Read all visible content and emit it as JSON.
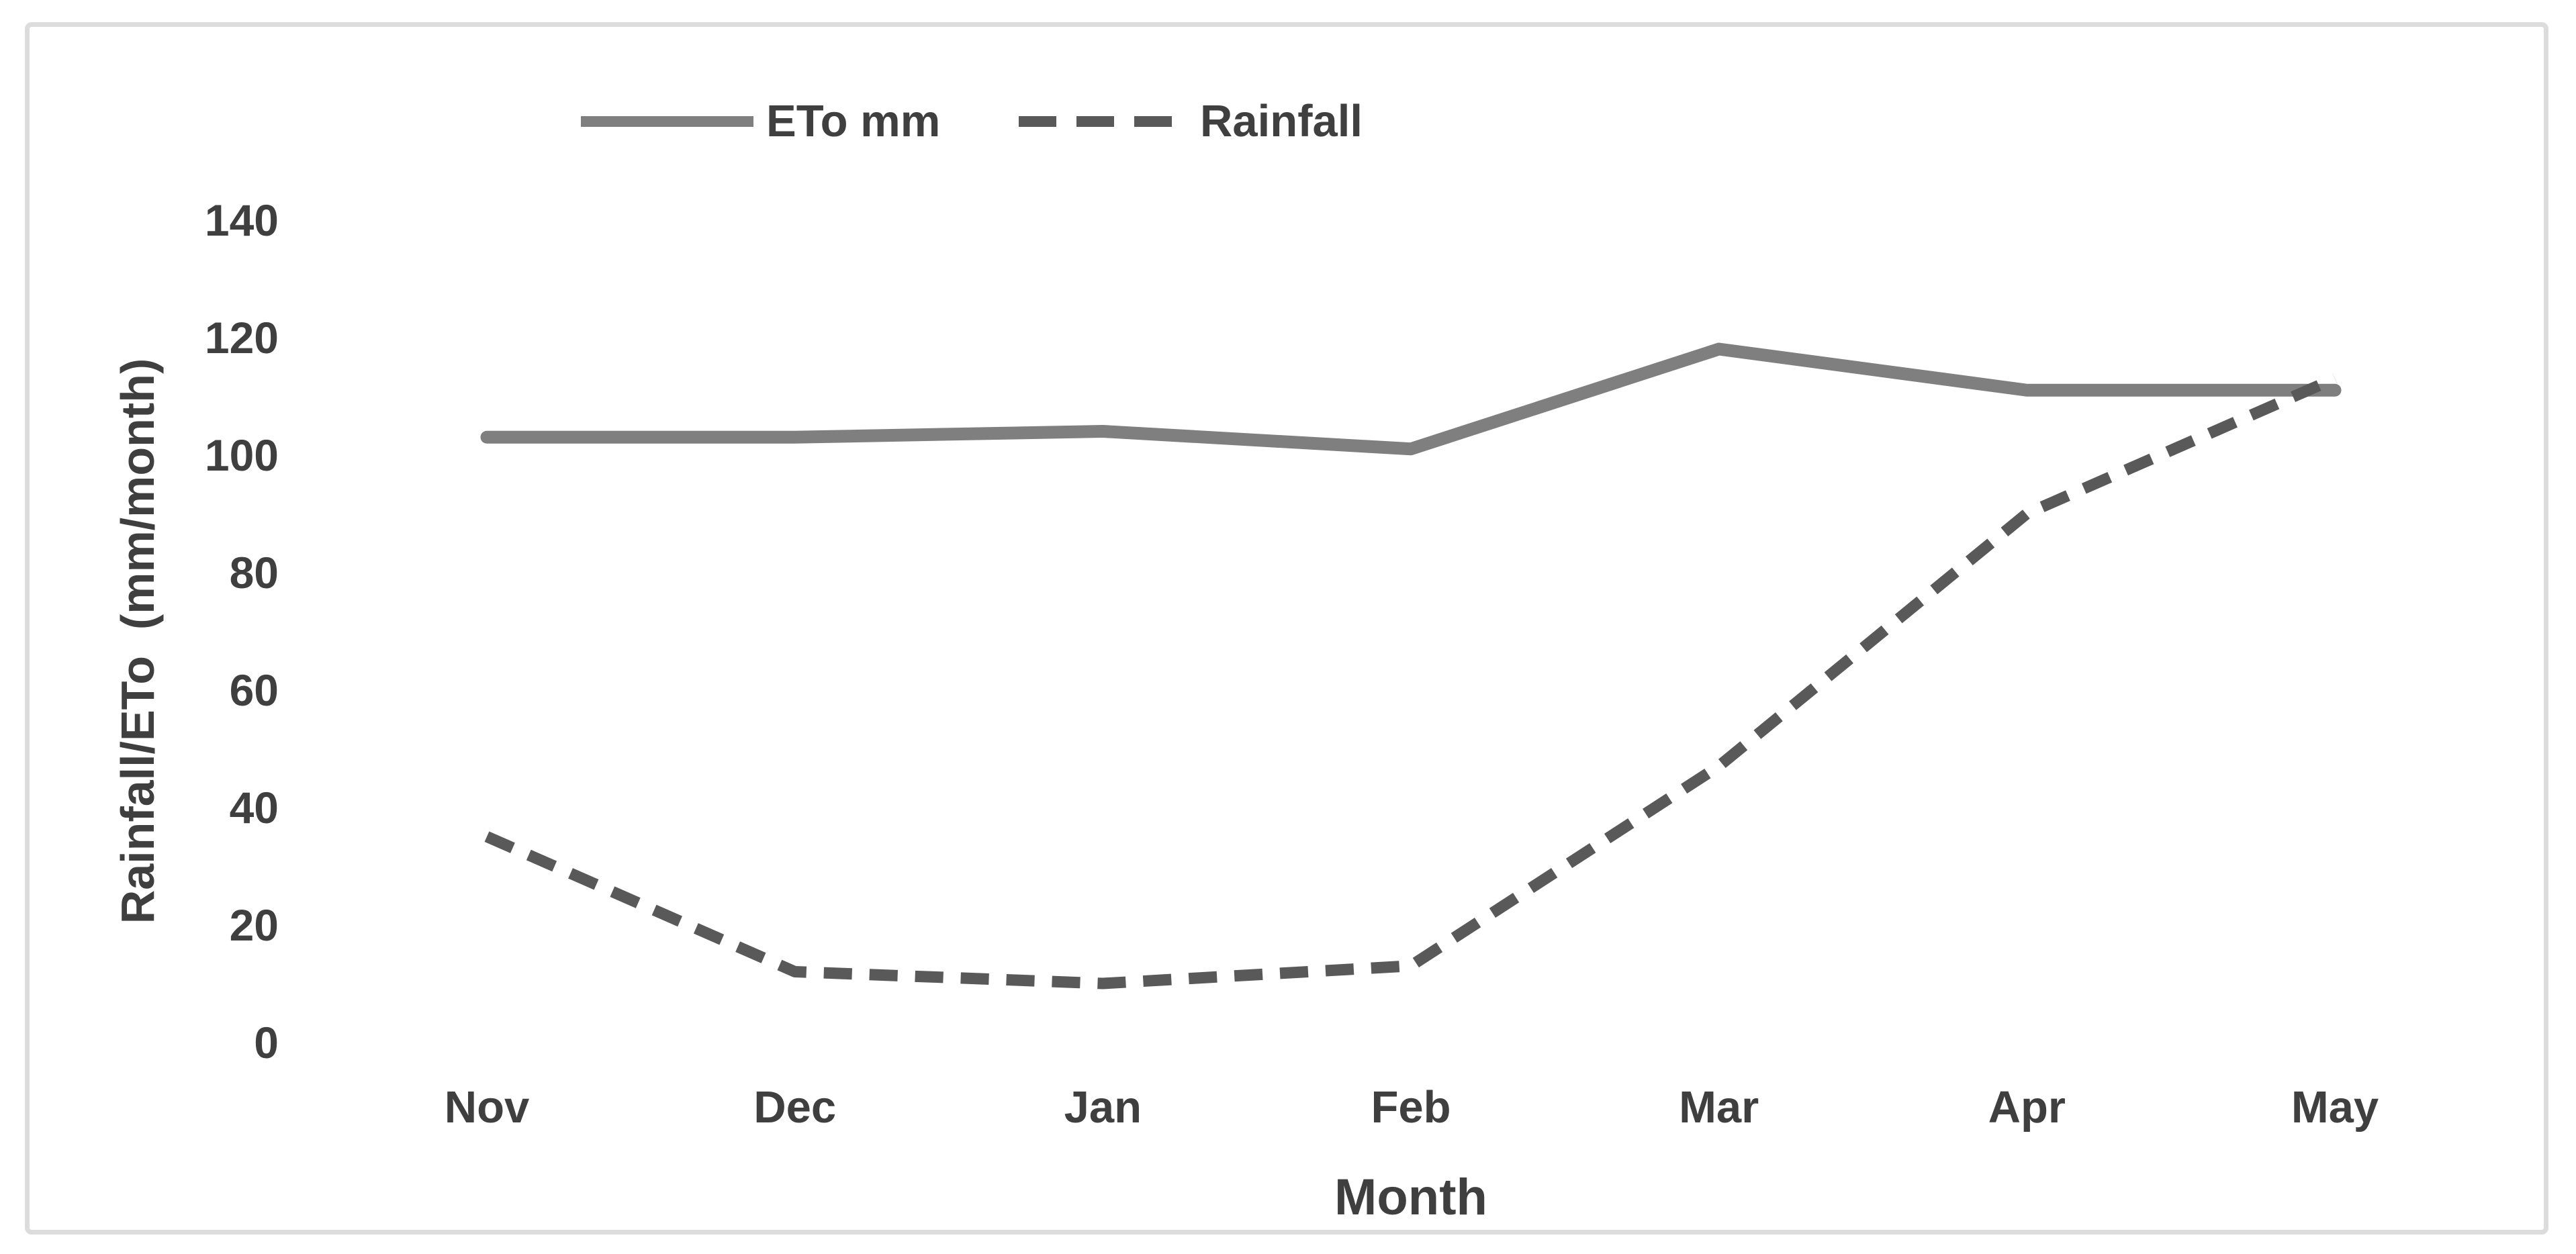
{
  "chart_data": {
    "type": "line",
    "categories": [
      "Nov",
      "Dec",
      "Jan",
      "Feb",
      "Mar",
      "Apr",
      "May"
    ],
    "series": [
      {
        "name": "ETo mm",
        "style": "solid",
        "color": "#7F7F7F",
        "values": [
          103,
          103,
          104,
          101,
          118,
          111,
          111
        ]
      },
      {
        "name": "Rainfall",
        "style": "dashed",
        "color": "#595959",
        "values": [
          35,
          12,
          10,
          13,
          47,
          90,
          113
        ]
      }
    ],
    "title": "",
    "xlabel": "Month",
    "ylabel": "Rainfall/ETo  (mm/month)",
    "yticks": [
      140,
      120,
      100,
      80,
      60,
      40,
      20,
      0
    ],
    "ylim": [
      0,
      140
    ],
    "grid": false,
    "legend_position": "top"
  },
  "colors": {
    "eto_line": "#7F7F7F",
    "rainfall_line": "#595959",
    "text": "#3F3F3F",
    "frame_border": "#DCDCDC",
    "background": "#FFFFFF"
  }
}
